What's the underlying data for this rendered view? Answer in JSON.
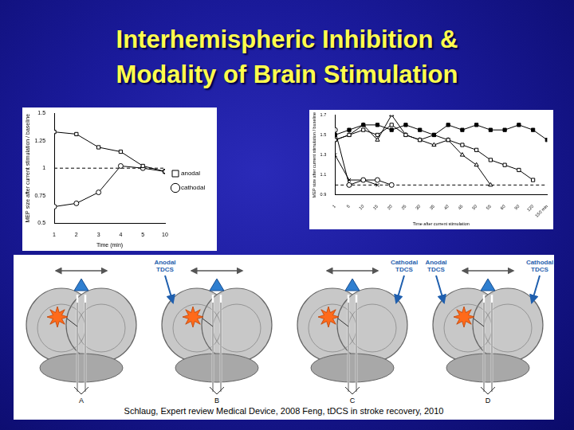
{
  "title": [
    "Interhemispheric Inhibition &",
    "Modality of Brain Stimulation"
  ],
  "citation": "Schlaug, Expert review Medical Device, 2008 Feng, tDCS in stroke recovery, 2010",
  "chart_data": [
    {
      "type": "line",
      "x_label": "Time (min)",
      "y_label": "MEP size after current stimulation / baseline",
      "categories": [
        "1",
        "2",
        "3",
        "4",
        "5",
        "10"
      ],
      "series": [
        {
          "name": "anodal",
          "color": "#000000",
          "marker": "open_square",
          "values": [
            1.33,
            1.31,
            1.19,
            1.15,
            1.02,
            0.97
          ]
        },
        {
          "name": "cathodal",
          "color": "#000000",
          "marker": "open_circle",
          "values": [
            0.65,
            0.68,
            0.78,
            1.02,
            1.0,
            0.97
          ]
        }
      ],
      "baseline": 1,
      "ylim": [
        0.5,
        1.5
      ],
      "yticks": [
        0.5,
        0.75,
        1,
        1.25,
        1.5
      ],
      "legend": "right",
      "grid": false
    },
    {
      "type": "line",
      "x_label": "Time after current stimulation",
      "y_label": "MEP size after current stimulation / baseline",
      "categories": [
        "1",
        "5",
        "10",
        "15",
        "20",
        "25",
        "30",
        "35",
        "40",
        "45",
        "50",
        "55",
        "60",
        "90",
        "120",
        "150 min"
      ],
      "series": [
        {
          "color": "#000000",
          "marker": "filled_square",
          "values": [
            1.5,
            1.55,
            1.6,
            1.6,
            1.55,
            1.6,
            1.55,
            1.5,
            1.6,
            1.55,
            1.6,
            1.55,
            1.55,
            1.6,
            1.55,
            1.45
          ]
        },
        {
          "color": "#000000",
          "marker": "open_square",
          "values": [
            1.45,
            1.5,
            1.55,
            1.5,
            1.6,
            1.5,
            1.45,
            1.5,
            1.45,
            1.4,
            1.35,
            1.25,
            1.2,
            1.15,
            1.05,
            null
          ]
        },
        {
          "color": "#000000",
          "marker": "open_triangle",
          "values": [
            1.45,
            1.5,
            1.6,
            1.45,
            1.7,
            1.5,
            1.45,
            1.4,
            1.45,
            1.3,
            1.2,
            1.0,
            null,
            null,
            null,
            null
          ]
        },
        {
          "color": "#000000",
          "marker": "open_circle",
          "values": [
            1.55,
            1.0,
            1.05,
            1.05,
            1.0,
            null,
            null,
            null,
            null,
            null,
            null,
            null,
            null,
            null,
            null,
            null
          ]
        },
        {
          "color": "#000000",
          "marker": "cross",
          "values": [
            1.3,
            1.05,
            1.05,
            1.0,
            null,
            null,
            null,
            null,
            null,
            null,
            null,
            null,
            null,
            null,
            null,
            null
          ]
        }
      ],
      "baseline": 1,
      "ylim": [
        0.9,
        1.7
      ],
      "yticks": [
        0.9,
        1.1,
        1.3,
        1.5,
        1.7
      ],
      "grid": false
    }
  ],
  "diagram": {
    "panels": [
      {
        "label": "A"
      },
      {
        "label": "B",
        "left": "Anodal TDCS"
      },
      {
        "label": "C",
        "right": "Cathodal TDCS"
      },
      {
        "label": "D",
        "left": "Anodal TDCS",
        "right": "Cathodal TDCS"
      }
    ]
  }
}
